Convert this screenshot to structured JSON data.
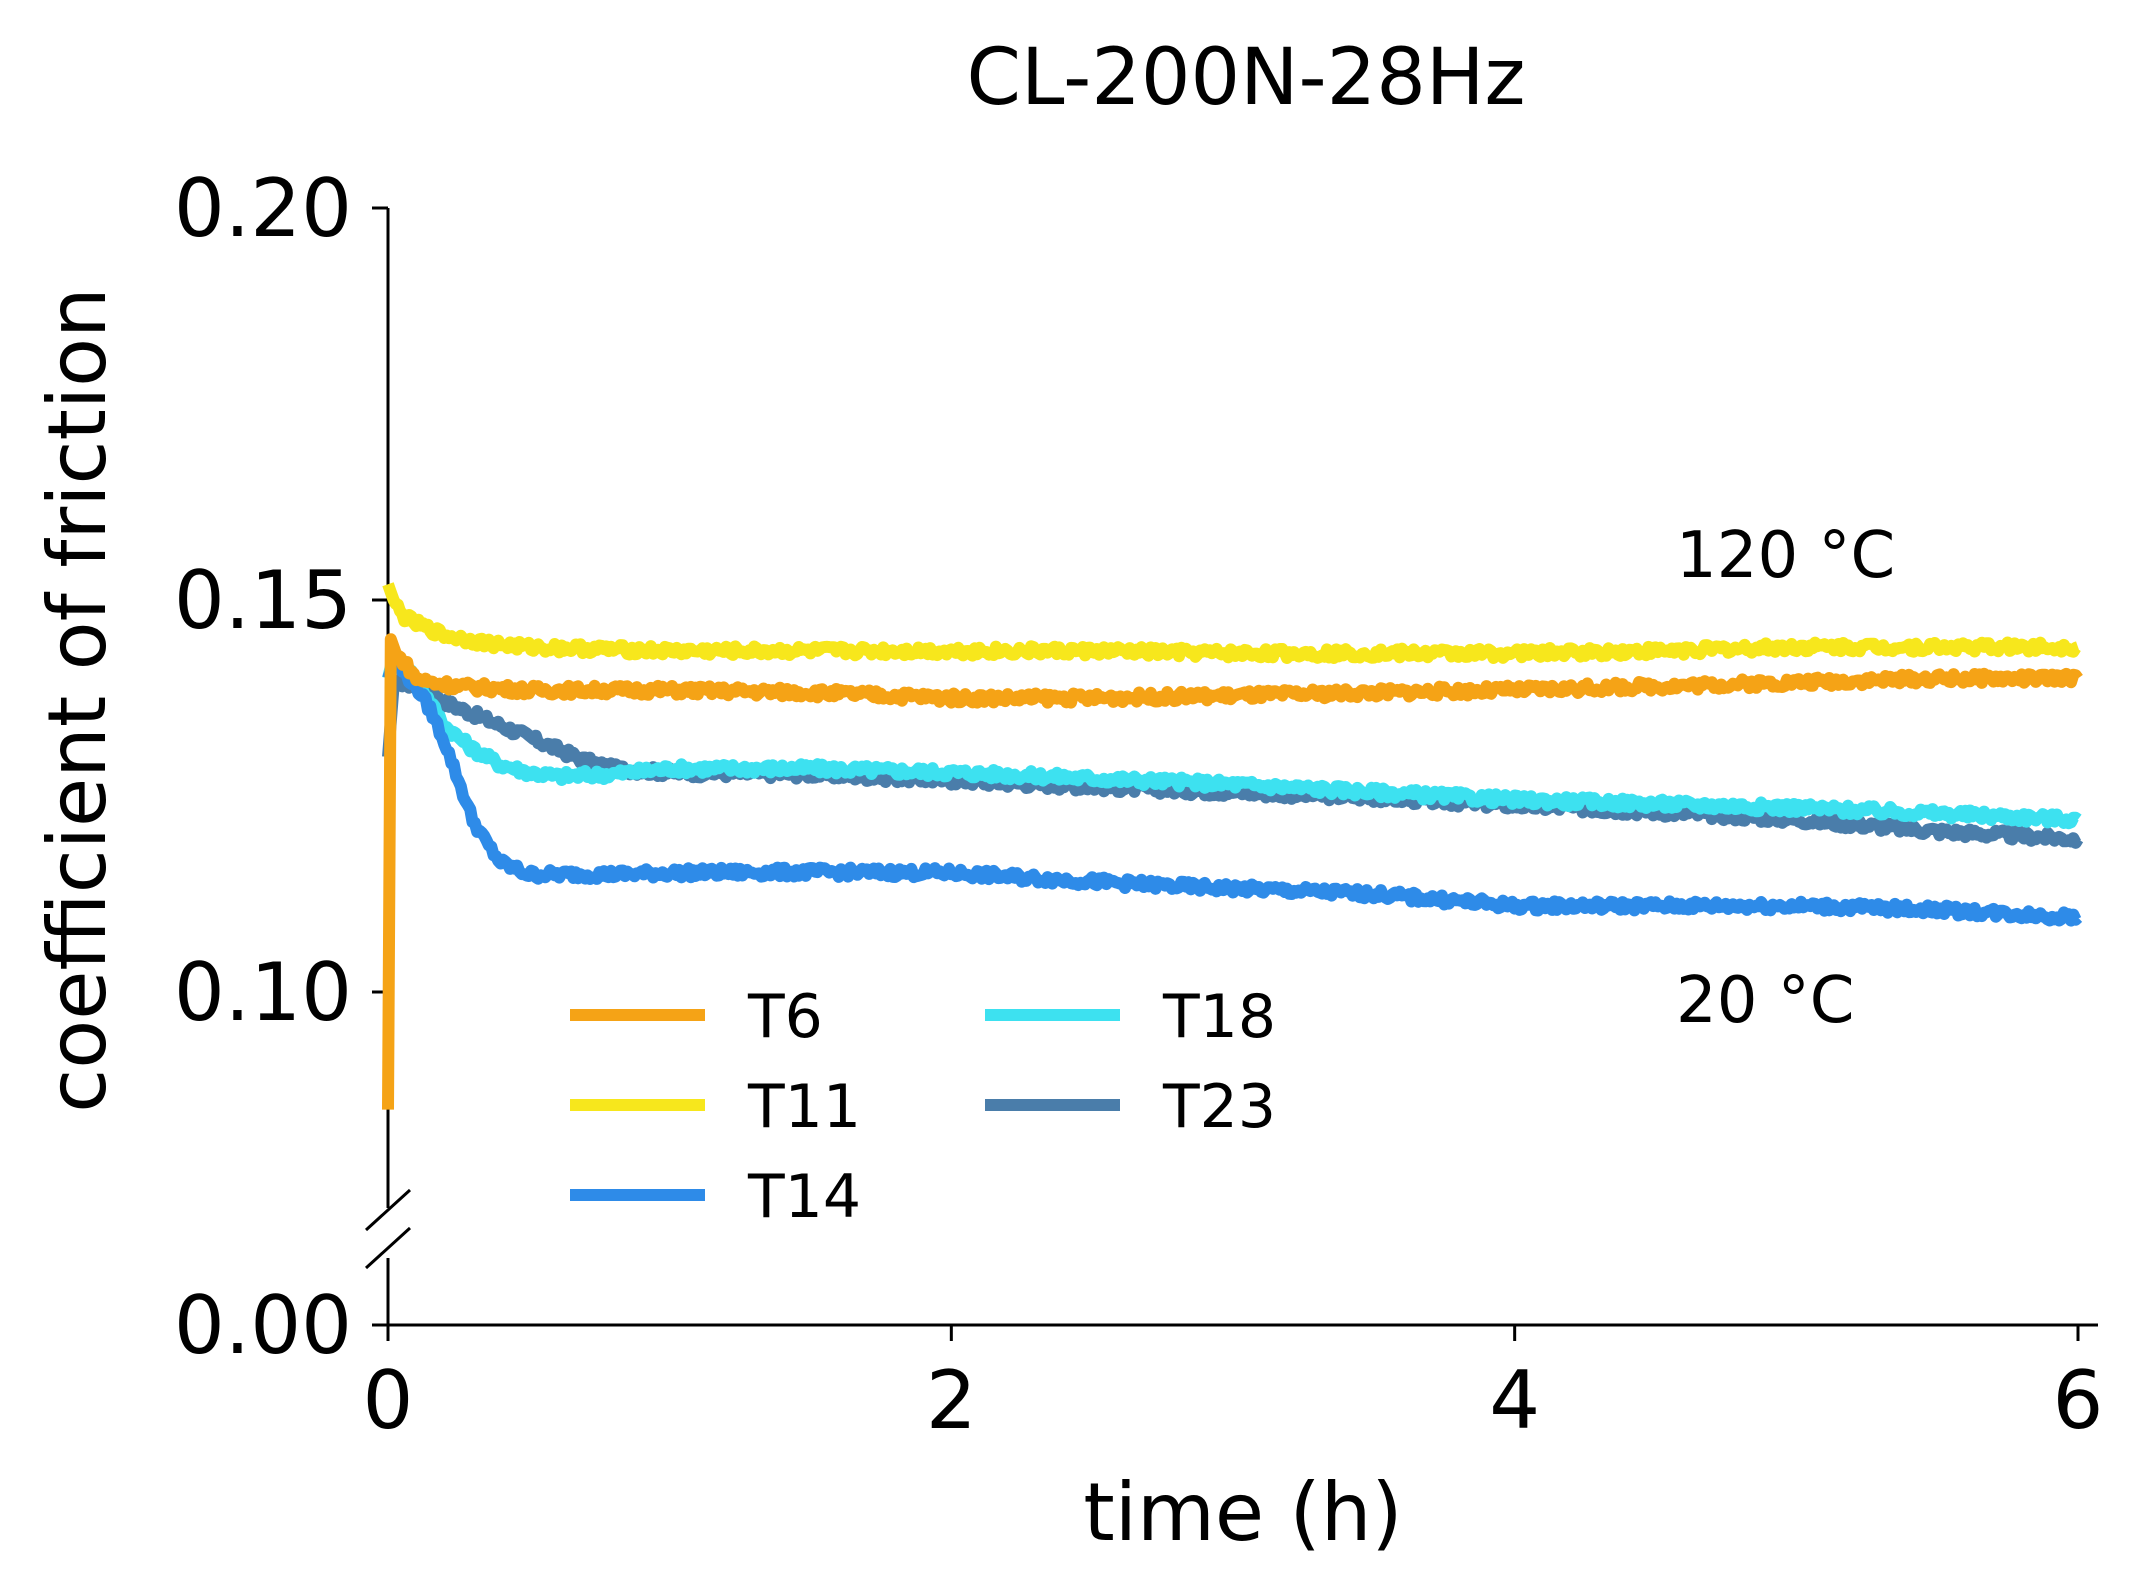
{
  "chart_data": {
    "type": "line",
    "title": "CL-200N-28Hz",
    "xlabel": "time (h)",
    "ylabel": "coefficient of friction",
    "xlim": [
      0,
      6
    ],
    "ylim_broken": {
      "lower": [
        0.0,
        0.0
      ],
      "upper": [
        0.075,
        0.2
      ]
    },
    "x_ticks": [
      "0",
      "2",
      "4",
      "6"
    ],
    "x_tick_values": [
      0,
      2,
      4,
      6
    ],
    "y_ticks": [
      "0.00",
      "0.10",
      "0.15",
      "0.20"
    ],
    "y_tick_values": [
      0.0,
      0.1,
      0.15,
      0.2
    ],
    "annotations": [
      {
        "text": "120 °C",
        "x": 4.6,
        "y": 0.1535
      },
      {
        "text": "20 °C",
        "x": 4.6,
        "y": 0.0965
      }
    ],
    "series": [
      {
        "name": "T6",
        "color": "#F5A316",
        "x": [
          0,
          0.01,
          0.03,
          0.06,
          0.1,
          0.15,
          0.25,
          0.5,
          1.0,
          1.5,
          2.0,
          2.5,
          3.0,
          3.5,
          4.0,
          4.5,
          5.0,
          5.5,
          6.0
        ],
        "y": [
          0.085,
          0.145,
          0.143,
          0.142,
          0.14,
          0.1395,
          0.139,
          0.1385,
          0.1385,
          0.1382,
          0.1375,
          0.1375,
          0.1378,
          0.1382,
          0.1385,
          0.139,
          0.1395,
          0.14,
          0.14
        ]
      },
      {
        "name": "T11",
        "color": "#F7E71C",
        "x": [
          0,
          0.02,
          0.05,
          0.1,
          0.2,
          0.35,
          0.5,
          1.0,
          1.5,
          2.0,
          2.5,
          3.0,
          3.5,
          4.0,
          4.5,
          5.0,
          5.5,
          6.0
        ],
        "y": [
          0.152,
          0.15,
          0.148,
          0.147,
          0.1455,
          0.1445,
          0.144,
          0.1435,
          0.1435,
          0.1435,
          0.1435,
          0.1432,
          0.1432,
          0.1432,
          0.1435,
          0.144,
          0.144,
          0.144
        ]
      },
      {
        "name": "T14",
        "color": "#2E8BE8",
        "x": [
          0,
          0.02,
          0.05,
          0.1,
          0.15,
          0.2,
          0.25,
          0.3,
          0.35,
          0.4,
          0.5,
          0.6,
          0.8,
          1.0,
          1.5,
          2.0,
          2.3,
          2.8,
          3.5,
          4.0,
          4.5,
          5.0,
          5.5,
          6.0
        ],
        "y": [
          0.14,
          0.142,
          0.141,
          0.139,
          0.136,
          0.132,
          0.127,
          0.122,
          0.119,
          0.1165,
          0.115,
          0.115,
          0.115,
          0.1152,
          0.1153,
          0.1152,
          0.1145,
          0.1135,
          0.1125,
          0.111,
          0.111,
          0.111,
          0.1105,
          0.1095
        ]
      },
      {
        "name": "T18",
        "color": "#3DE1F0",
        "x": [
          0,
          0.02,
          0.05,
          0.1,
          0.15,
          0.2,
          0.3,
          0.4,
          0.5,
          0.6,
          0.8,
          1.0,
          1.5,
          2.0,
          3.0,
          4.0,
          5.0,
          6.0
        ],
        "y": [
          0.14,
          0.143,
          0.142,
          0.14,
          0.137,
          0.134,
          0.131,
          0.129,
          0.128,
          0.1275,
          0.1278,
          0.1285,
          0.1285,
          0.128,
          0.1265,
          0.1245,
          0.1235,
          0.122
        ]
      },
      {
        "name": "T23",
        "color": "#4A7DAA",
        "x": [
          0,
          0.02,
          0.05,
          0.1,
          0.15,
          0.2,
          0.3,
          0.4,
          0.5,
          0.6,
          0.7,
          0.8,
          1.0,
          1.5,
          2.0,
          2.5,
          3.0,
          3.5,
          4.0,
          4.5,
          5.0,
          5.5,
          6.0
        ],
        "y": [
          0.13,
          0.139,
          0.1395,
          0.139,
          0.138,
          0.137,
          0.1355,
          0.134,
          0.1325,
          0.131,
          0.1295,
          0.1285,
          0.128,
          0.1278,
          0.127,
          0.1262,
          0.1255,
          0.1248,
          0.1238,
          0.123,
          0.122,
          0.1205,
          0.1195
        ]
      }
    ],
    "legend": {
      "position": "lower-center",
      "columns": 2,
      "entries": [
        "T6",
        "T11",
        "T14",
        "T18",
        "T23"
      ]
    }
  }
}
